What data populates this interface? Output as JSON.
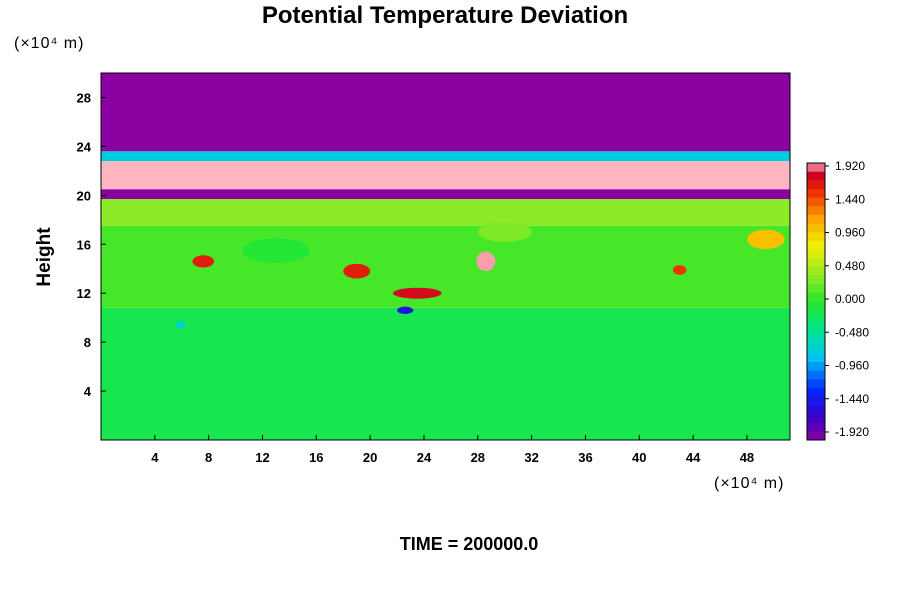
{
  "chart_data": {
    "type": "heatmap",
    "title": "Potential Temperature Deviation",
    "ylabel": "Height",
    "xlabel": "",
    "x_unit": "(×10⁴ m)",
    "y_unit": "(×10⁴ m)",
    "xlim": [
      0,
      51.2
    ],
    "ylim": [
      0,
      30
    ],
    "x_ticks": [
      "4",
      "8",
      "12",
      "16",
      "20",
      "24",
      "28",
      "32",
      "36",
      "40",
      "44",
      "48"
    ],
    "y_ticks": [
      "4",
      "8",
      "12",
      "16",
      "20",
      "24",
      "28"
    ],
    "colorbar": {
      "range": [
        -1.92,
        1.92
      ],
      "tick_labels": [
        "1.920",
        "1.440",
        "0.960",
        "0.480",
        "0.000",
        "-0.480",
        "-0.960",
        "-1.440",
        "-1.920"
      ]
    },
    "footer": "TIME = 200000.0",
    "layers": [
      {
        "y_from": 0,
        "y_to": 10.8,
        "value": -0.15
      },
      {
        "y_from": 10.8,
        "y_to": 17.5,
        "value": 0.1
      },
      {
        "y_from": 17.5,
        "y_to": 19.7,
        "value": 0.35
      },
      {
        "y_from": 19.7,
        "y_to": 20.5,
        "value": -1.92
      },
      {
        "y_from": 20.5,
        "y_to": 22.8,
        "value": 1.92
      },
      {
        "y_from": 22.8,
        "y_to": 23.6,
        "value": -0.7
      },
      {
        "y_from": 23.6,
        "y_to": 30,
        "value": -1.92
      }
    ],
    "blobs": [
      {
        "x": 7.6,
        "y": 14.6,
        "rx": 0.8,
        "ry": 0.5,
        "value": 1.6
      },
      {
        "x": 19.0,
        "y": 13.8,
        "rx": 1.0,
        "ry": 0.6,
        "value": 1.6
      },
      {
        "x": 23.5,
        "y": 12.0,
        "rx": 1.8,
        "ry": 0.45,
        "value": 1.7
      },
      {
        "x": 28.6,
        "y": 14.6,
        "rx": 0.7,
        "ry": 0.8,
        "value": 1.9
      },
      {
        "x": 43.0,
        "y": 13.9,
        "rx": 0.5,
        "ry": 0.4,
        "value": 1.5
      },
      {
        "x": 49.4,
        "y": 16.4,
        "rx": 1.4,
        "ry": 0.8,
        "value": 1.0
      },
      {
        "x": 22.6,
        "y": 10.6,
        "rx": 0.6,
        "ry": 0.3,
        "value": -1.4
      },
      {
        "x": 5.9,
        "y": 9.4,
        "rx": 0.4,
        "ry": 0.3,
        "value": -0.6
      },
      {
        "x": 30.0,
        "y": 17.0,
        "rx": 2.0,
        "ry": 0.8,
        "value": 0.3
      },
      {
        "x": 13.0,
        "y": 15.5,
        "rx": 2.5,
        "ry": 1.0,
        "value": -0.05
      }
    ]
  }
}
